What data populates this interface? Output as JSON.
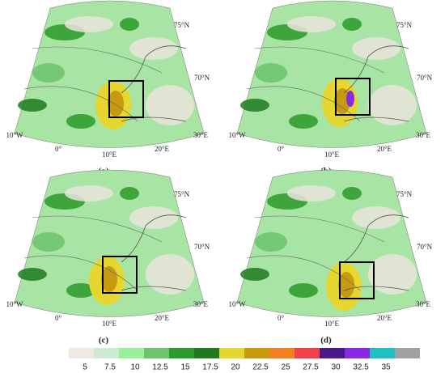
{
  "panels": [
    {
      "label": "(a)",
      "lat_labels": [
        "75°N",
        "70°N"
      ],
      "lon_labels": [
        "10°W",
        "0°",
        "10°E",
        "20°E",
        "30°E"
      ]
    },
    {
      "label": "(b)",
      "lat_labels": [
        "75°N",
        "70°N"
      ],
      "lon_labels": [
        "10°W",
        "0°",
        "10°E",
        "20°E",
        "30°E"
      ]
    },
    {
      "label": "(c)",
      "lat_labels": [
        "75°N",
        "70°N"
      ],
      "lon_labels": [
        "10°W",
        "0°",
        "10°E",
        "20°E",
        "30°E"
      ]
    },
    {
      "label": "(d)",
      "lat_labels": [
        "75°N",
        "70°N"
      ],
      "lon_labels": [
        "10°W",
        "0°",
        "10°E",
        "20°E",
        "30°E"
      ]
    }
  ],
  "colorbar": {
    "ticks": [
      5,
      7.5,
      10,
      12.5,
      15,
      17.5,
      20,
      22.5,
      25,
      27.5,
      30,
      32.5,
      35
    ],
    "colors": [
      "#efe9e2",
      "#cdebd0",
      "#98f09a",
      "#6cc46c",
      "#2c9a2c",
      "#1f7a1f",
      "#e6d730",
      "#c89a10",
      "#f08020",
      "#f0404a",
      "#4a1a8a",
      "#8a2ae0",
      "#20c0c0",
      "#a0a0a0"
    ]
  }
}
